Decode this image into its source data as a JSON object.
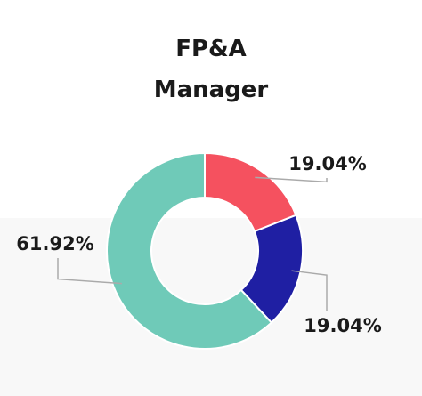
{
  "chart_data": {
    "type": "pie",
    "title": "FP&A Manager",
    "values": [
      19.04,
      19.04,
      61.92
    ],
    "value_labels": [
      "19.04%",
      "19.04%",
      "61.92%"
    ],
    "colors": [
      "#f5515f",
      "#1f1fa3",
      "#6fcab8"
    ]
  }
}
